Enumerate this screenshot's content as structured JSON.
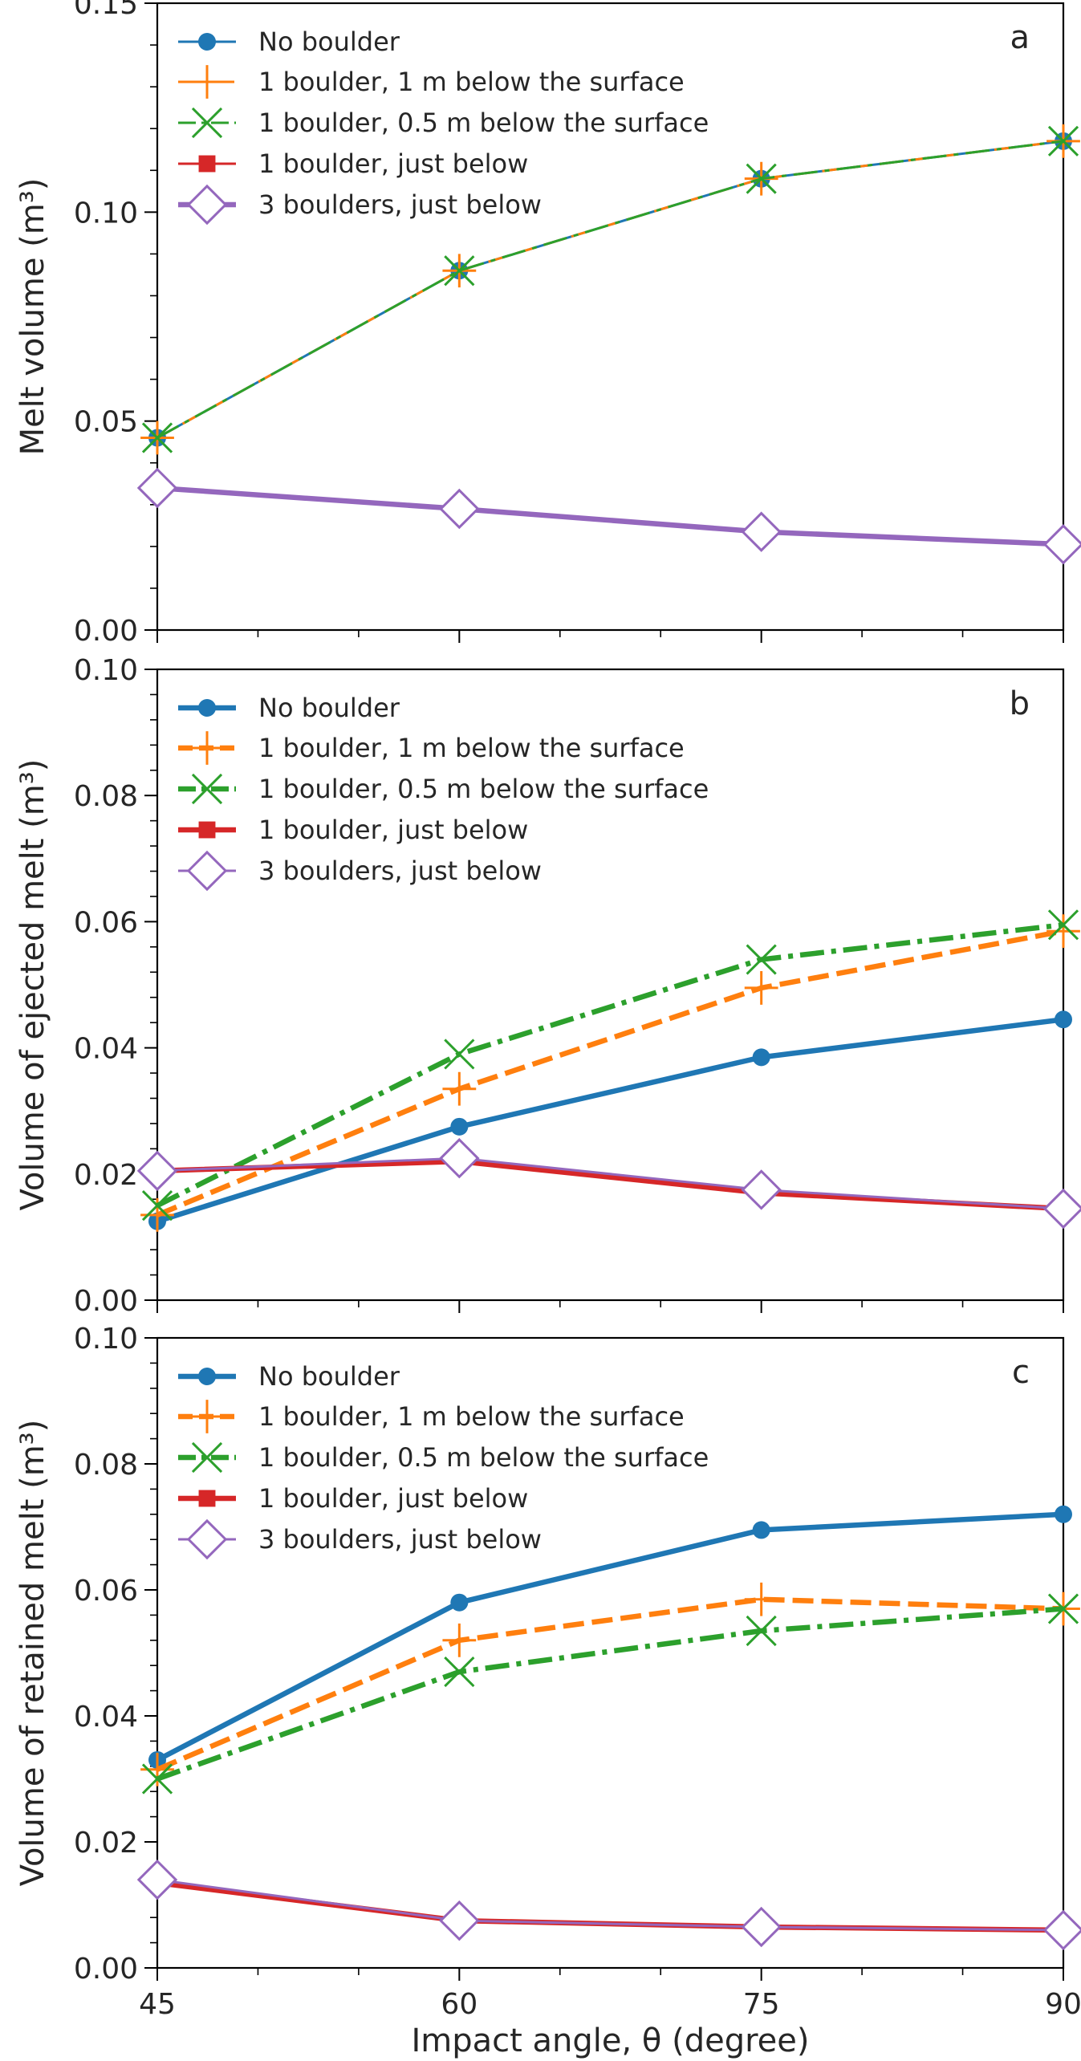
{
  "chart_data": [
    {
      "type": "line",
      "panel_label": "a",
      "x": [
        45,
        60,
        75,
        90
      ],
      "ylabel": "Melt volume (m³)",
      "ylim": [
        0,
        0.15
      ],
      "yticks": [
        "0.00",
        "0.05",
        "0.10",
        "0.15"
      ],
      "legend_position": "top-left",
      "series": [
        {
          "name": "No boulder",
          "values": [
            0.046,
            0.086,
            0.108,
            0.117
          ],
          "color": "#1f77b4",
          "marker": "circle",
          "dash": "solid",
          "line_weight": "thin"
        },
        {
          "name": "1 boulder, 1 m below the surface",
          "values": [
            0.046,
            0.086,
            0.108,
            0.117
          ],
          "color": "#ff7f0e",
          "marker": "plus",
          "dash": "dashed",
          "line_weight": "thin"
        },
        {
          "name": "1 boulder, 0.5 m below the surface",
          "values": [
            0.046,
            0.086,
            0.108,
            0.117
          ],
          "color": "#2ca02c",
          "marker": "x",
          "dash": "dashdot",
          "line_weight": "thin"
        },
        {
          "name": "1 boulder, just below",
          "values": [
            0.034,
            0.029,
            0.0235,
            0.0205
          ],
          "color": "#d62728",
          "marker": "square",
          "dash": "solid",
          "line_weight": "thin"
        },
        {
          "name": "3 boulders, just below",
          "values": [
            0.034,
            0.029,
            0.0235,
            0.0205
          ],
          "color": "#9467bd",
          "marker": "diamond",
          "dash": "solid",
          "line_weight": "thick"
        }
      ]
    },
    {
      "type": "line",
      "panel_label": "b",
      "x": [
        45,
        60,
        75,
        90
      ],
      "ylabel": "Volume of ejected melt (m³)",
      "ylim": [
        0,
        0.1
      ],
      "yticks": [
        "0.00",
        "0.02",
        "0.04",
        "0.06",
        "0.08",
        "0.10"
      ],
      "legend_position": "top-left",
      "series": [
        {
          "name": "No boulder",
          "values": [
            0.0125,
            0.0275,
            0.0385,
            0.0445
          ],
          "color": "#1f77b4",
          "marker": "circle",
          "dash": "solid",
          "line_weight": "thick"
        },
        {
          "name": "1 boulder, 1 m below the surface",
          "values": [
            0.0135,
            0.0335,
            0.0495,
            0.0585
          ],
          "color": "#ff7f0e",
          "marker": "plus",
          "dash": "dashed",
          "line_weight": "thick"
        },
        {
          "name": "1 boulder, 0.5 m below the surface",
          "values": [
            0.015,
            0.039,
            0.054,
            0.0595
          ],
          "color": "#2ca02c",
          "marker": "x",
          "dash": "dashdot",
          "line_weight": "thick"
        },
        {
          "name": "1 boulder, just below",
          "values": [
            0.0205,
            0.022,
            0.017,
            0.0145
          ],
          "color": "#d62728",
          "marker": "square",
          "dash": "solid",
          "line_weight": "thick"
        },
        {
          "name": "3 boulders, just below",
          "values": [
            0.0205,
            0.0225,
            0.0175,
            0.0145
          ],
          "color": "#9467bd",
          "marker": "diamond",
          "dash": "solid",
          "line_weight": "thin"
        }
      ]
    },
    {
      "type": "line",
      "panel_label": "c",
      "x": [
        45,
        60,
        75,
        90
      ],
      "xlabel": "Impact angle, θ (degree)",
      "xticks": [
        "45",
        "60",
        "75",
        "90"
      ],
      "ylabel": "Volume of retained melt (m³)",
      "ylim": [
        0,
        0.1
      ],
      "yticks": [
        "0.00",
        "0.02",
        "0.04",
        "0.06",
        "0.08",
        "0.10"
      ],
      "legend_position": "top-left",
      "series": [
        {
          "name": "No boulder",
          "values": [
            0.033,
            0.058,
            0.0695,
            0.072
          ],
          "color": "#1f77b4",
          "marker": "circle",
          "dash": "solid",
          "line_weight": "thick"
        },
        {
          "name": "1 boulder, 1 m below the surface",
          "values": [
            0.0315,
            0.052,
            0.0585,
            0.057
          ],
          "color": "#ff7f0e",
          "marker": "plus",
          "dash": "dashed",
          "line_weight": "thick"
        },
        {
          "name": "1 boulder, 0.5 m below the surface",
          "values": [
            0.03,
            0.047,
            0.0535,
            0.057
          ],
          "color": "#2ca02c",
          "marker": "x",
          "dash": "dashdot",
          "line_weight": "thick"
        },
        {
          "name": "1 boulder, just below",
          "values": [
            0.0135,
            0.0075,
            0.0065,
            0.006
          ],
          "color": "#d62728",
          "marker": "square",
          "dash": "solid",
          "line_weight": "thick"
        },
        {
          "name": "3 boulders, just below",
          "values": [
            0.014,
            0.0075,
            0.0065,
            0.006
          ],
          "color": "#9467bd",
          "marker": "diamond",
          "dash": "solid",
          "line_weight": "thin"
        }
      ]
    }
  ]
}
